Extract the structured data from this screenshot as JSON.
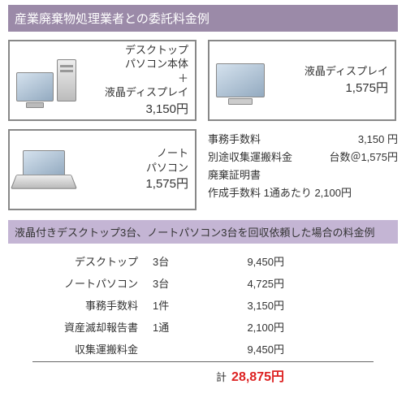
{
  "header": "産業廃棄物処理業者との委託料金例",
  "cards": {
    "desktop": {
      "name1": "デスクトップ",
      "name2": "パソコン本体",
      "plus": "＋",
      "name3": "液晶ディスプレイ",
      "price": "3,150円"
    },
    "lcd": {
      "name": "液晶ディスプレイ",
      "price": "1,575円"
    },
    "note": {
      "name1": "ノート",
      "name2": "パソコン",
      "price": "1,575円"
    }
  },
  "fees": {
    "r1l": "事務手数料",
    "r1v": "3,150 円",
    "r2l": "別途収集運搬料金",
    "r2v": "台数＠1,575円",
    "r3a": "廃棄証明書",
    "r3b": "作成手数料 1通あたり  2,100円"
  },
  "subheader": "液晶付きデスクトップ3台、ノートパソコン3台を回収依頼した場合の料金例",
  "table": [
    {
      "c1": "デスクトップ",
      "c2": "3台",
      "c3": "9,450円"
    },
    {
      "c1": "ノートパソコン",
      "c2": "3台",
      "c3": "4,725円"
    },
    {
      "c1": "事務手数料",
      "c2": "1件",
      "c3": "3,150円"
    },
    {
      "c1": "資産滅却報告書",
      "c2": "1通",
      "c3": "2,100円"
    },
    {
      "c1": "収集運搬料金",
      "c2": "",
      "c3": "9,450円"
    }
  ],
  "total": {
    "label": "計",
    "value": "28,875円"
  }
}
